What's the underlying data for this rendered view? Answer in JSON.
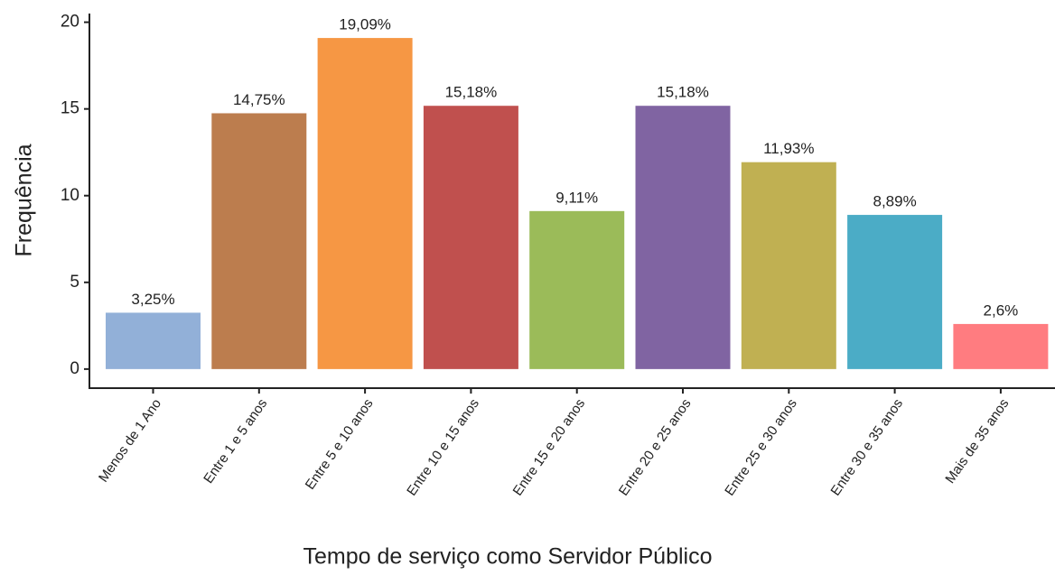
{
  "chart_data": {
    "type": "bar",
    "x_label": "Tempo de serviço como Servidor Público",
    "y_label": "Frequência",
    "categories": [
      "Menos de 1 Ano",
      "Entre 1 e 5 anos",
      "Entre 5 e 10 anos",
      "Entre 10 e 15 anos",
      "Entre 15 e 20 anos",
      "Entre 20 e 25 anos",
      "Entre 25 e 30 anos",
      "Entre 30 e 35 anos",
      "Mais de 35 anos"
    ],
    "values": [
      3.25,
      14.75,
      19.09,
      15.18,
      9.11,
      15.18,
      11.93,
      8.89,
      2.6
    ],
    "value_labels": [
      "3,25%",
      "14,75%",
      "19,09%",
      "15,18%",
      "9,11%",
      "15,18%",
      "11,93%",
      "8,89%",
      "2,6%"
    ],
    "colors": [
      "#92b0d8",
      "#bc7d4e",
      "#f69744",
      "#c0504e",
      "#9bbb59",
      "#8064a2",
      "#c0b052",
      "#4bacc6",
      "#ff7c80"
    ],
    "ylim": [
      -1.1,
      20.5
    ],
    "yticks": [
      0,
      5,
      10,
      15,
      20
    ],
    "grid": false
  }
}
